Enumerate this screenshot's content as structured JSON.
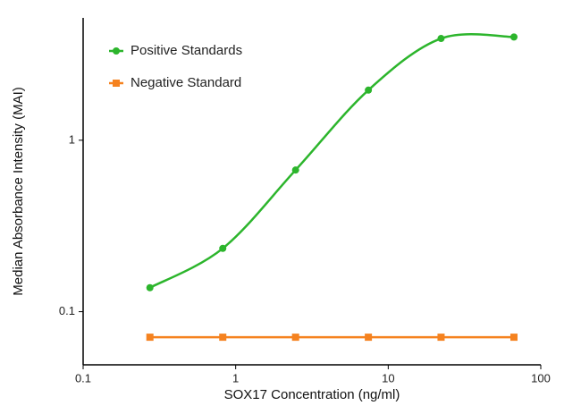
{
  "chart_data": {
    "type": "line",
    "x_label": "SOX17 Concentration (ng/ml)",
    "y_label": "Median Absorbance Intensity (MAI)",
    "x": [
      0.274,
      0.823,
      2.47,
      7.41,
      22.2,
      66.7
    ],
    "series": [
      {
        "name": "Positive Standards",
        "color": "#2cb52c",
        "marker": "circle",
        "values": [
          0.138,
          0.234,
          0.67,
          1.96,
          3.92,
          4.0
        ]
      },
      {
        "name": "Negative Standard",
        "color": "#f5821f",
        "marker": "square",
        "values": [
          0.071,
          0.071,
          0.071,
          0.071,
          0.071,
          0.071
        ]
      }
    ],
    "xscale": "log",
    "yscale": "log",
    "xlim": [
      0.1,
      100
    ],
    "ylim": [
      0.049,
      5.17
    ],
    "xticks": [
      0.1,
      1,
      10,
      100
    ],
    "yticks": [
      0.1,
      1
    ],
    "legend": "upper left",
    "grid": false
  }
}
